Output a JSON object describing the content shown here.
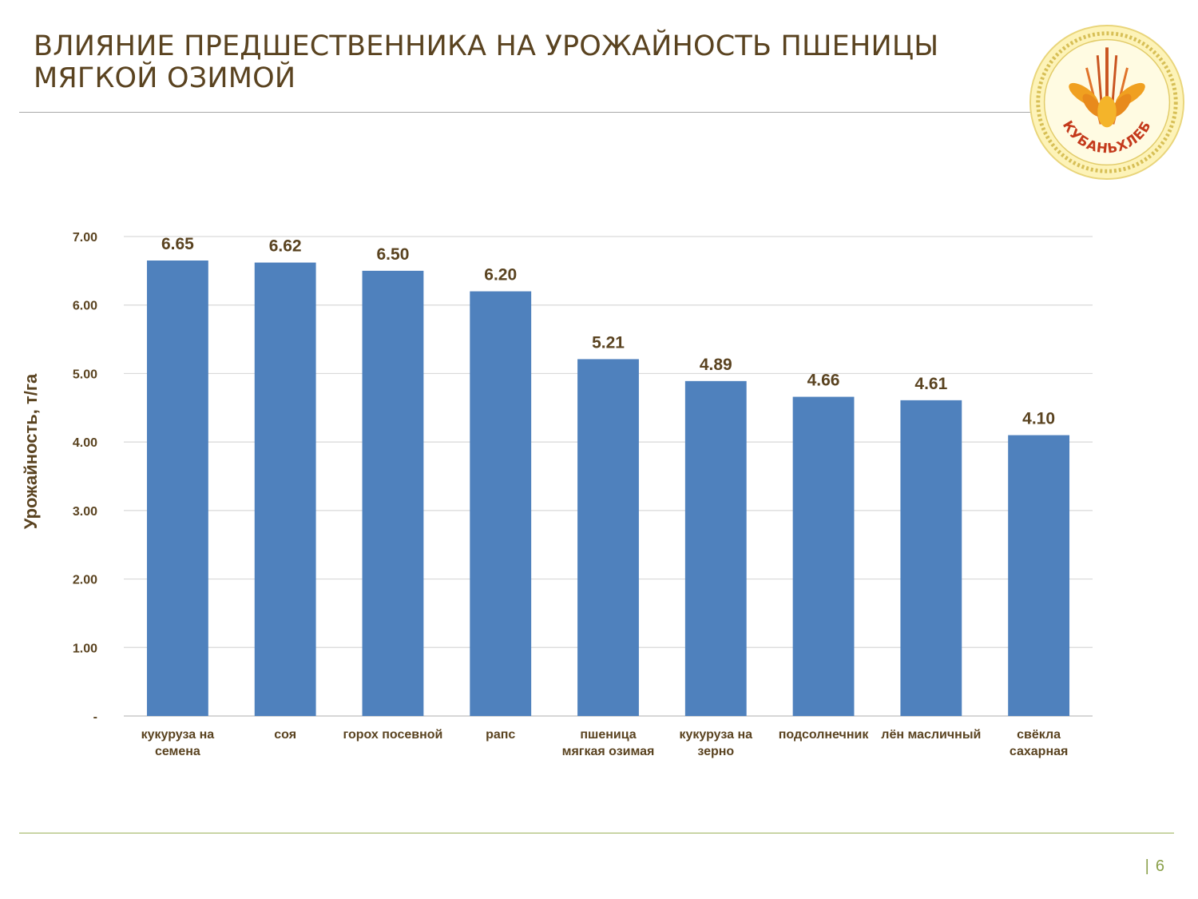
{
  "header": {
    "title_line1": "ВЛИЯНИЕ ПРЕДШЕСТВЕННИКА НА УРОЖАЙНОСТЬ ПШЕНИЦЫ",
    "title_line2": "МЯГКОЙ ОЗИМОЙ",
    "logo_text": "КУБАНЬХЛЕБ"
  },
  "footer": {
    "separator": "|",
    "page_number": "6"
  },
  "colors": {
    "bar": "#4f81bd",
    "text": "#5a4320",
    "grid": "#d9d9d9",
    "footer_accent": "#8aa04a"
  },
  "chart_data": {
    "type": "bar",
    "title": "",
    "xlabel": "",
    "ylabel": "Урожайность, т/га",
    "ylim": [
      0,
      7
    ],
    "y_ticks": [
      0,
      1,
      2,
      3,
      4,
      5,
      6,
      7
    ],
    "y_tick_labels": [
      "-",
      "1.00",
      "2.00",
      "3.00",
      "4.00",
      "5.00",
      "6.00",
      "7.00"
    ],
    "grid": true,
    "categories": [
      [
        "кукуруза на",
        "семена"
      ],
      [
        "соя"
      ],
      [
        "горох посевной"
      ],
      [
        "рапс"
      ],
      [
        "пшеница",
        "мягкая озимая"
      ],
      [
        "кукуруза на",
        "зерно"
      ],
      [
        "подсолнечник"
      ],
      [
        "лён масличный"
      ],
      [
        "свёкла",
        "сахарная"
      ]
    ],
    "values": [
      6.65,
      6.62,
      6.5,
      6.2,
      5.21,
      4.89,
      4.66,
      4.61,
      4.1
    ],
    "value_labels": [
      "6.65",
      "6.62",
      "6.50",
      "6.20",
      "5.21",
      "4.89",
      "4.66",
      "4.61",
      "4.10"
    ]
  }
}
